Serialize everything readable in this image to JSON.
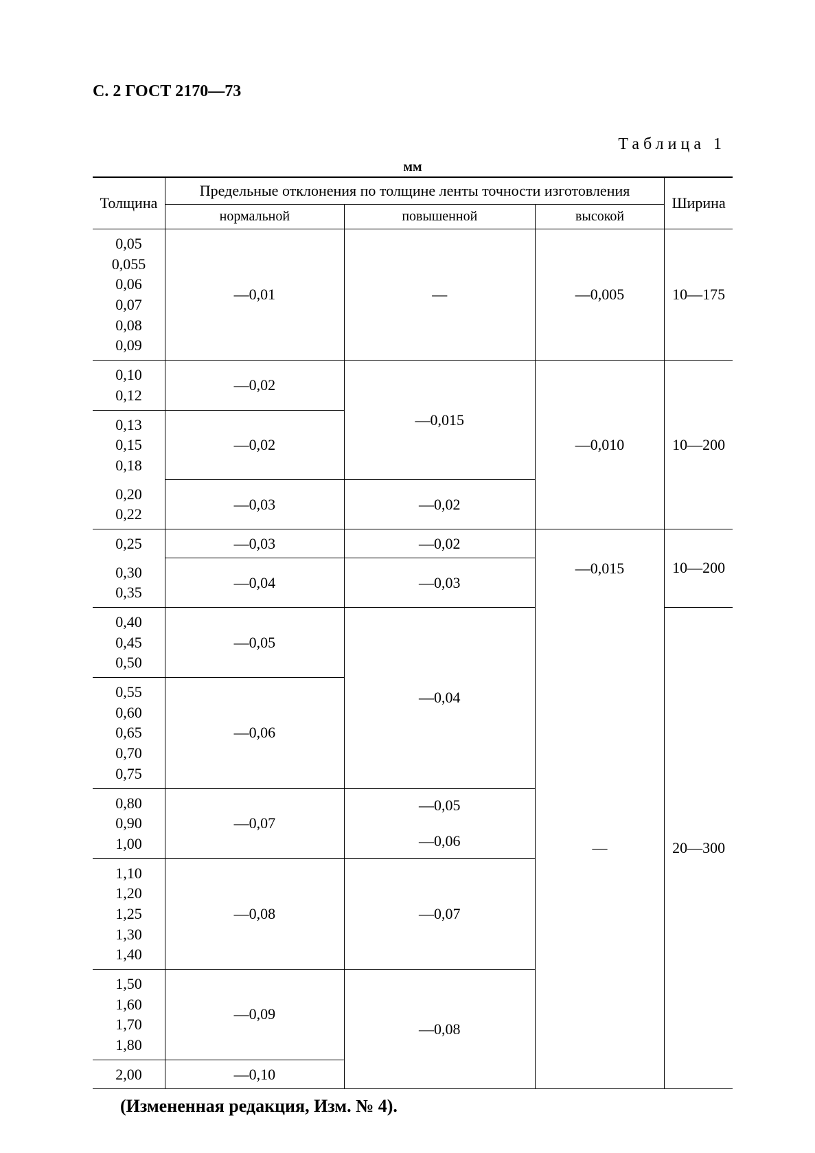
{
  "page": {
    "header": "С. 2 ГОСТ 2170—73",
    "table_label": "Таблица 1",
    "unit": "мм",
    "footnote": "(Измененная редакция, Изм. № 4)."
  },
  "colors": {
    "text": "#000000",
    "background": "#ffffff",
    "border": "#000000"
  },
  "typography": {
    "family": "Times New Roman",
    "base_size_pt": 16,
    "header_bold": true
  },
  "table": {
    "type": "table",
    "columns": {
      "thickness": "Толщина",
      "deviations_group": "Предельные отклонения по толщине ленты точности изготовления",
      "normal": "нормальной",
      "increased": "повышенной",
      "high": "высокой",
      "width": "Ширина"
    },
    "col_widths_pct": [
      18,
      18,
      18,
      18,
      18
    ],
    "groups": [
      {
        "thickness": [
          "0,05",
          "0,055",
          "0,06",
          "0,07",
          "0,08",
          "0,09"
        ],
        "normal": "—0,01",
        "increased": "—",
        "high": "—0,005",
        "width": "10—175"
      },
      {
        "thickness": [
          "0,10",
          "0,12"
        ],
        "normal": "—0,02",
        "increased_span": "—0,015",
        "high_span": "—0,010",
        "width_span": "10—200"
      },
      {
        "thickness": [
          "0,13",
          "0,15",
          "0,18"
        ],
        "normal": "—0,02"
      },
      {
        "thickness": [
          "0,20",
          "0,22"
        ],
        "normal": "—0,03",
        "increased": "—0,02"
      },
      {
        "thickness_a": "0,25",
        "normal_a": "—0,03",
        "increased_a": "—0,02",
        "high": "—0,015",
        "width": "10—200",
        "thickness_b": [
          "0,30",
          "0,35"
        ],
        "normal_b": "—0,04",
        "increased_b": "—0,03"
      },
      {
        "thickness": [
          "0,40",
          "0,45",
          "0,50"
        ],
        "normal": "—0,05",
        "increased_span": "—0,04",
        "high": "—",
        "width": "20—300"
      },
      {
        "thickness": [
          "0,55",
          "0,60",
          "0,65",
          "0,70",
          "0,75"
        ],
        "normal": "—0,06",
        "increased": "—0,05"
      },
      {
        "thickness": [
          "0,80",
          "0,90",
          "1,00"
        ],
        "normal": "—0,07",
        "increased": "—0,06"
      },
      {
        "thickness": [
          "1,10",
          "1,20",
          "1,25",
          "1,30",
          "1,40"
        ],
        "normal": "—0,08",
        "increased": "—0,07"
      },
      {
        "thickness": [
          "1,50",
          "1,60",
          "1,70",
          "1,80"
        ],
        "normal": "—0,09",
        "increased": "—0,08"
      },
      {
        "thickness": [
          "2,00"
        ],
        "normal": "—0,10"
      }
    ]
  }
}
